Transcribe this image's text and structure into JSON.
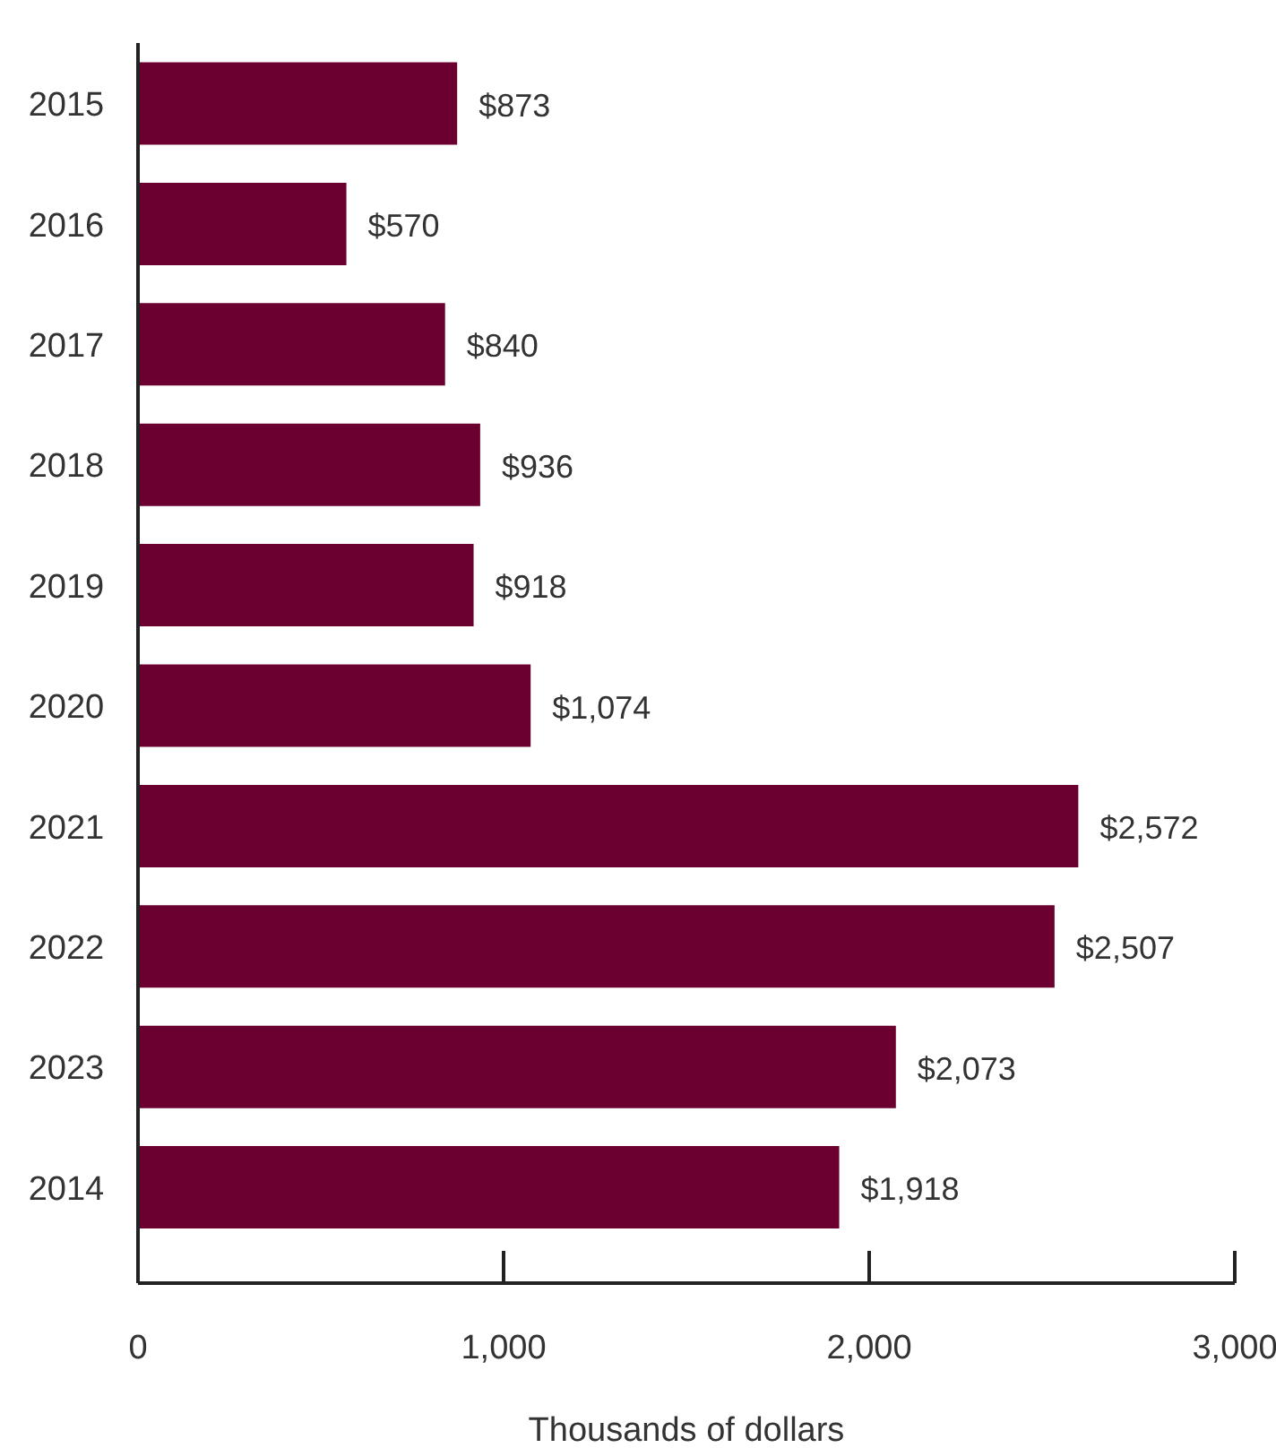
{
  "chart_data": {
    "type": "bar",
    "orientation": "horizontal",
    "xlabel": "Thousands of dollars",
    "categories": [
      "2015",
      "2016",
      "2017",
      "2018",
      "2019",
      "2020",
      "2021",
      "2022",
      "2023",
      "2014"
    ],
    "values": [
      873,
      570,
      840,
      936,
      918,
      1074,
      2572,
      2507,
      2073,
      1918
    ],
    "value_labels": [
      "$873",
      "$570",
      "$840",
      "$936",
      "$918",
      "$1,074",
      "$2,572",
      "$2,507",
      "$2,073",
      "$1,918"
    ],
    "color": "#6b0030",
    "xlim": [
      0,
      3000
    ],
    "xticks": [
      0,
      {
        "value": 1000,
        "label": "1,000"
      },
      {
        "value": 2000,
        "label": "2,000"
      },
      {
        "value": 3000,
        "label": "3,000"
      }
    ]
  }
}
